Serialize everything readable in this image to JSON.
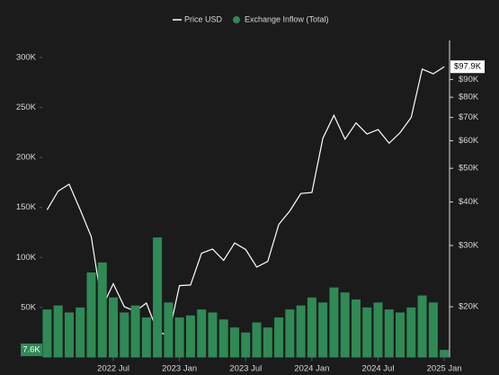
{
  "chart_data": {
    "type": "combo",
    "x": [
      "2022 Jan",
      "2022 Feb",
      "2022 Mar",
      "2022 Apr",
      "2022 May",
      "2022 Jun",
      "2022 Jul",
      "2022 Aug",
      "2022 Sep",
      "2022 Oct",
      "2022 Nov",
      "2022 Dec",
      "2023 Jan",
      "2023 Feb",
      "2023 Mar",
      "2023 Apr",
      "2023 May",
      "2023 Jun",
      "2023 Jul",
      "2023 Aug",
      "2023 Sep",
      "2023 Oct",
      "2023 Nov",
      "2023 Dec",
      "2024 Jan",
      "2024 Feb",
      "2024 Mar",
      "2024 Apr",
      "2024 May",
      "2024 Jun",
      "2024 Jul",
      "2024 Aug",
      "2024 Sep",
      "2024 Oct",
      "2024 Nov",
      "2024 Dec",
      "2025 Jan"
    ],
    "xticks": [
      "2022 Jul",
      "2023 Jan",
      "2023 Jul",
      "2024 Jan",
      "2024 Jul",
      "2025 Jan"
    ],
    "series": [
      {
        "name": "Price USD",
        "type": "line",
        "axis": "y2",
        "color": "#ffffff",
        "values": [
          38000,
          43000,
          45000,
          38000,
          31800,
          20000,
          23300,
          20000,
          19400,
          20500,
          17000,
          16500,
          23000,
          23100,
          28500,
          29300,
          27200,
          30500,
          29200,
          26000,
          27000,
          34500,
          37700,
          42300,
          42600,
          61000,
          71000,
          60600,
          67500,
          62700,
          64600,
          59000,
          63300,
          70000,
          96400,
          93400,
          97900
        ],
        "value_labels": [
          null,
          null,
          null,
          null,
          null,
          null,
          null,
          null,
          null,
          null,
          null,
          null,
          null,
          null,
          null,
          null,
          null,
          null,
          null,
          null,
          null,
          null,
          null,
          null,
          null,
          null,
          null,
          null,
          null,
          null,
          null,
          null,
          null,
          null,
          null,
          null,
          "$97.9K"
        ]
      },
      {
        "name": "Exchange Inflow (Total)",
        "type": "bar",
        "color": "#2f8a55",
        "values": [
          48000,
          52000,
          45000,
          50000,
          85000,
          95000,
          60000,
          45000,
          52000,
          40000,
          120000,
          55000,
          40000,
          42000,
          48000,
          45000,
          38000,
          30000,
          25000,
          35000,
          30000,
          40000,
          48000,
          52000,
          60000,
          55000,
          70000,
          65000,
          58000,
          50000,
          55000,
          48000,
          45000,
          50000,
          62000,
          55000,
          7600
        ],
        "value_labels": [
          null,
          null,
          null,
          null,
          null,
          null,
          null,
          null,
          null,
          null,
          null,
          null,
          null,
          null,
          null,
          null,
          null,
          null,
          null,
          null,
          null,
          null,
          null,
          null,
          null,
          null,
          null,
          null,
          null,
          null,
          null,
          null,
          null,
          null,
          null,
          null,
          "7.6K"
        ]
      }
    ],
    "ylim": [
      0,
      317000
    ],
    "yticks": [
      {
        "value": 50000,
        "label": "50K"
      },
      {
        "value": 100000,
        "label": "100K"
      },
      {
        "value": 150000,
        "label": "150K"
      },
      {
        "value": 200000,
        "label": "200K"
      },
      {
        "value": 250000,
        "label": "250K"
      },
      {
        "value": 300000,
        "label": "300K"
      }
    ],
    "y2lim": [
      14300,
      116500
    ],
    "y2log": true,
    "y2ticks": [
      {
        "value": 20000,
        "label": "$20K"
      },
      {
        "value": 30000,
        "label": "$30K"
      },
      {
        "value": 40000,
        "label": "$40K"
      },
      {
        "value": 50000,
        "label": "$50K"
      },
      {
        "value": 60000,
        "label": "$60K"
      },
      {
        "value": 70000,
        "label": "$70K"
      },
      {
        "value": 80000,
        "label": "$80K"
      },
      {
        "value": 90000,
        "label": "$90K"
      }
    ]
  }
}
